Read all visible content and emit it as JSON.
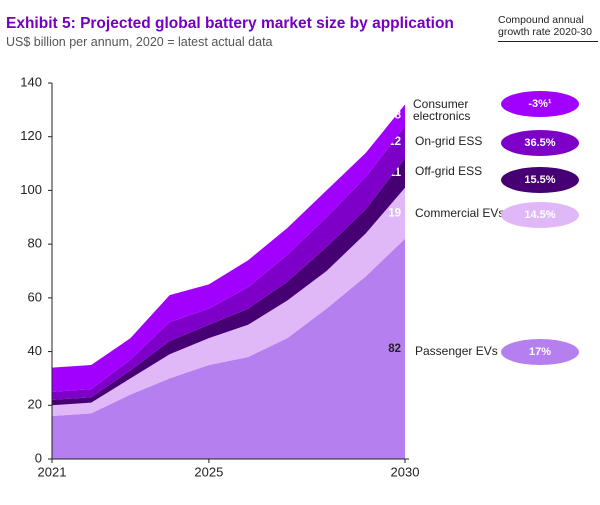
{
  "chart_data": {
    "type": "stacked_area",
    "title": "Exhibit 5: Projected global battery market size by application",
    "subtitle": "US$ billion per annum, 2020 = latest actual data",
    "legend_title": "Compound annual growth rate 2020-30",
    "x": [
      2021,
      2022,
      2023,
      2024,
      2025,
      2026,
      2027,
      2028,
      2029,
      2030
    ],
    "xlim": [
      2021,
      2030
    ],
    "xticks": [
      2021,
      2025,
      2030
    ],
    "ylim": [
      0,
      140
    ],
    "yticks": [
      0,
      20,
      40,
      60,
      80,
      100,
      120,
      140
    ],
    "grid": false,
    "series": [
      {
        "name": "Passenger EVs",
        "color": "#b57ff0",
        "label_color": "#222222",
        "cagr_label": "17%",
        "values": [
          16,
          17,
          24,
          30,
          35,
          38,
          45,
          56,
          68,
          82
        ]
      },
      {
        "name": "Commercial EVs",
        "color": "#e0b8f7",
        "label_color": "#ffffff",
        "cagr_label": "14.5%",
        "values": [
          4,
          4,
          6,
          9,
          10,
          12,
          14,
          14,
          16,
          19
        ]
      },
      {
        "name": "Off-grid ESS",
        "color": "#460073",
        "label_color": "#ffffff",
        "cagr_label": "15.5%",
        "values": [
          2,
          2,
          3,
          5,
          5,
          6,
          7,
          9,
          9,
          11
        ]
      },
      {
        "name": "On-grid ESS",
        "color": "#7e00c8",
        "label_color": "#ffffff",
        "cagr_label": "36.5%",
        "values": [
          3,
          3,
          4,
          7,
          6,
          8,
          10,
          11,
          12,
          12
        ]
      },
      {
        "name": "Consumer electronics",
        "color": "#a100ff",
        "label_color": "#ffffff",
        "cagr_label": "-3%¹",
        "values": [
          9,
          9,
          8,
          10,
          9,
          10,
          10,
          10,
          9,
          8
        ]
      }
    ]
  }
}
